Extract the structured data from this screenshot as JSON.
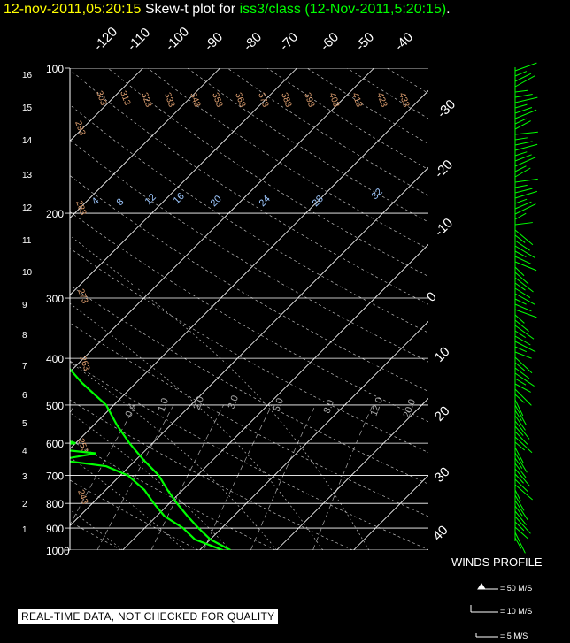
{
  "title": {
    "date": "12-nov-2011,05:20:15",
    "mid": "Skew-t plot for",
    "station": "iss3/class",
    "paren": "(12-Nov-2011,5:20:15)",
    "end": "."
  },
  "chart_data": {
    "type": "skew-t",
    "y_pressure_ticks": [
      100,
      200,
      300,
      400,
      500,
      600,
      700,
      800,
      900,
      1000
    ],
    "y_pressure_labels": [
      "100",
      "200",
      "300",
      "400",
      "500",
      "600",
      "700",
      "800",
      "900",
      "1000"
    ],
    "y_height_ticks_km": [
      1,
      2,
      3,
      4,
      5,
      6,
      7,
      8,
      9,
      10,
      11,
      12,
      13,
      14,
      15,
      16
    ],
    "y_height_labels": [
      "1",
      "2",
      "3",
      "4",
      "5",
      "6",
      "7",
      "8",
      "9",
      "10",
      "11",
      "12",
      "13",
      "14",
      "15",
      "16"
    ],
    "temp_top_labels": [
      "-120",
      "-110",
      "-100",
      "-90",
      "-80",
      "-70",
      "-60",
      "-50",
      "-40"
    ],
    "temp_right_labels": [
      "-30",
      "-20",
      "-10",
      "0",
      "10",
      "20",
      "30",
      "40"
    ],
    "theta_labels": [
      "243",
      "253",
      "263",
      "273",
      "283",
      "293",
      "303",
      "313",
      "323",
      "333",
      "343",
      "353",
      "363",
      "373",
      "383",
      "393",
      "403",
      "413",
      "423",
      "433"
    ],
    "theta_e_labels": [
      "4",
      "8",
      "12",
      "16",
      "20",
      "24",
      "28",
      "32"
    ],
    "mixing_ratio_labels": [
      "0.4",
      "1.0",
      "2.0",
      "3.0",
      "5.0",
      "8.0",
      "12.0",
      "20.0"
    ],
    "temperature_profile": [
      [
        1000,
        14
      ],
      [
        950,
        10
      ],
      [
        900,
        7
      ],
      [
        850,
        4
      ],
      [
        800,
        1
      ],
      [
        750,
        -2
      ],
      [
        700,
        -5
      ],
      [
        650,
        -9
      ],
      [
        600,
        -13
      ],
      [
        550,
        -17
      ],
      [
        500,
        -21
      ],
      [
        450,
        -27
      ],
      [
        400,
        -33
      ],
      [
        350,
        -40
      ],
      [
        300,
        -47
      ],
      [
        250,
        -55
      ],
      [
        200,
        -60
      ],
      [
        175,
        -62
      ],
      [
        150,
        -64
      ],
      [
        125,
        -66
      ],
      [
        110,
        -68
      ],
      [
        100,
        -70
      ]
    ],
    "dewpoint_profile": [
      [
        1000,
        13
      ],
      [
        950,
        8
      ],
      [
        900,
        5
      ],
      [
        850,
        1
      ],
      [
        800,
        -2
      ],
      [
        750,
        -5
      ],
      [
        700,
        -9
      ],
      [
        670,
        -13
      ],
      [
        650,
        -20
      ],
      [
        630,
        -16
      ],
      [
        610,
        -25
      ],
      [
        600,
        -20
      ],
      [
        580,
        -24
      ],
      [
        550,
        -29
      ],
      [
        520,
        -33
      ],
      [
        500,
        -49
      ],
      [
        480,
        -48
      ],
      [
        460,
        -31
      ],
      [
        455,
        -29
      ],
      [
        450,
        -44
      ],
      [
        440,
        -57
      ],
      [
        430,
        -63
      ],
      [
        420,
        -57
      ],
      [
        410,
        -69
      ],
      [
        400,
        -79
      ],
      [
        380,
        -78
      ],
      [
        370,
        -87
      ],
      [
        360,
        -84
      ],
      [
        350,
        -90
      ],
      [
        330,
        -90
      ],
      [
        310,
        -84
      ],
      [
        300,
        -86
      ],
      [
        280,
        -79
      ],
      [
        260,
        -83
      ],
      [
        240,
        -86
      ],
      [
        220,
        -84
      ],
      [
        200,
        -86
      ],
      [
        180,
        -82
      ],
      [
        160,
        -84
      ],
      [
        140,
        -83
      ],
      [
        120,
        -83
      ],
      [
        110,
        -84
      ],
      [
        100,
        -83
      ]
    ]
  },
  "winds_profile": {
    "label": "WINDS PROFILE",
    "legend": [
      "= 50 M/S",
      "= 10 M/S",
      "= 5 M/S"
    ]
  },
  "notice": "REAL-TIME DATA, NOT CHECKED FOR QUALITY"
}
